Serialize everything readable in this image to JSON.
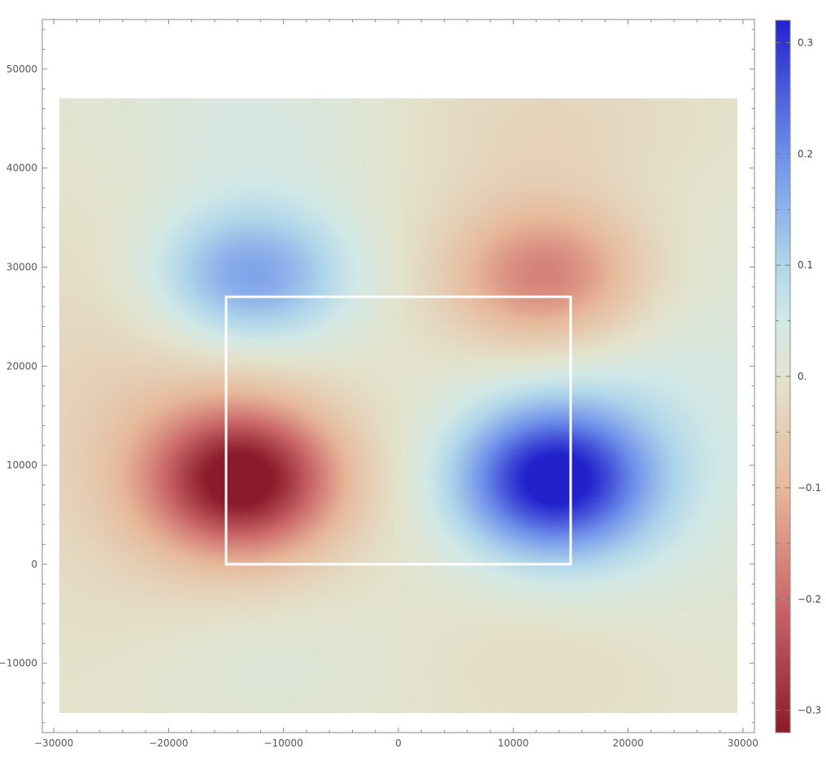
{
  "chart_data": {
    "type": "heatmap",
    "title": "",
    "xlabel": "",
    "ylabel": "",
    "xlim": [
      -31000,
      31000
    ],
    "ylim": [
      -17000,
      55000
    ],
    "data_extent": {
      "x": [
        -29500,
        29500
      ],
      "y": [
        -15000,
        47000
      ]
    },
    "x_ticks": [
      {
        "value": -30000,
        "label": "−30000"
      },
      {
        "value": -20000,
        "label": "−20000"
      },
      {
        "value": -10000,
        "label": "−10000"
      },
      {
        "value": 0,
        "label": "0"
      },
      {
        "value": 10000,
        "label": "10000"
      },
      {
        "value": 20000,
        "label": "20000"
      },
      {
        "value": 30000,
        "label": "30000"
      }
    ],
    "y_ticks": [
      {
        "value": -10000,
        "label": "−10000"
      },
      {
        "value": 0,
        "label": "0"
      },
      {
        "value": 10000,
        "label": "10000"
      },
      {
        "value": 20000,
        "label": "20000"
      },
      {
        "value": 30000,
        "label": "30000"
      },
      {
        "value": 40000,
        "label": "40000"
      },
      {
        "value": 50000,
        "label": "50000"
      }
    ],
    "grid": false,
    "field_components": [
      {
        "x": -13500,
        "y": 8500,
        "amplitude": -0.32,
        "sigma_x": 5800,
        "sigma_y": 5200
      },
      {
        "x": 13500,
        "y": 8500,
        "amplitude": 0.32,
        "sigma_x": 5800,
        "sigma_y": 5200
      },
      {
        "x": -13000,
        "y": 29000,
        "amplitude": 0.19,
        "sigma_x": 6200,
        "sigma_y": 5200
      },
      {
        "x": 13000,
        "y": 29000,
        "amplitude": -0.19,
        "sigma_x": 6200,
        "sigma_y": 5200
      },
      {
        "x": -21000,
        "y": 15000,
        "amplitude": -0.05,
        "sigma_x": 10000,
        "sigma_y": 14000
      },
      {
        "x": 21000,
        "y": 15000,
        "amplitude": 0.05,
        "sigma_x": 10000,
        "sigma_y": 14000
      },
      {
        "x": -13000,
        "y": 44000,
        "amplitude": 0.04,
        "sigma_x": 9000,
        "sigma_y": 6000
      },
      {
        "x": 13000,
        "y": 44000,
        "amplitude": -0.04,
        "sigma_x": 9000,
        "sigma_y": 6000
      },
      {
        "x": -12000,
        "y": -10000,
        "amplitude": 0.025,
        "sigma_x": 8000,
        "sigma_y": 5000
      },
      {
        "x": 14000,
        "y": -10000,
        "amplitude": -0.025,
        "sigma_x": 8000,
        "sigma_y": 5000
      }
    ],
    "overlay_rectangle": {
      "x": [
        -15000,
        15000
      ],
      "y": [
        0,
        27000
      ],
      "color": "#ffffff"
    },
    "colorbar": {
      "range": [
        -0.32,
        0.32
      ],
      "ticks": [
        {
          "value": 0.3,
          "label": "0.3"
        },
        {
          "value": 0.2,
          "label": "0.2"
        },
        {
          "value": 0.1,
          "label": "0.1"
        },
        {
          "value": 0,
          "label": "0."
        },
        {
          "value": -0.1,
          "label": "−0.1"
        },
        {
          "value": -0.2,
          "label": "−0.2"
        },
        {
          "value": -0.3,
          "label": "−0.3"
        }
      ],
      "gradient_stops": [
        {
          "value": -0.32,
          "color": "#8b1a2b"
        },
        {
          "value": -0.2,
          "color": "#cd6b6b"
        },
        {
          "value": -0.1,
          "color": "#e7b89a"
        },
        {
          "value": 0,
          "color": "#e3e3cd"
        },
        {
          "value": 0.05,
          "color": "#d2e8e6"
        },
        {
          "value": 0.1,
          "color": "#afd6ea"
        },
        {
          "value": 0.2,
          "color": "#6e8fea"
        },
        {
          "value": 0.32,
          "color": "#2222cc"
        }
      ]
    }
  }
}
